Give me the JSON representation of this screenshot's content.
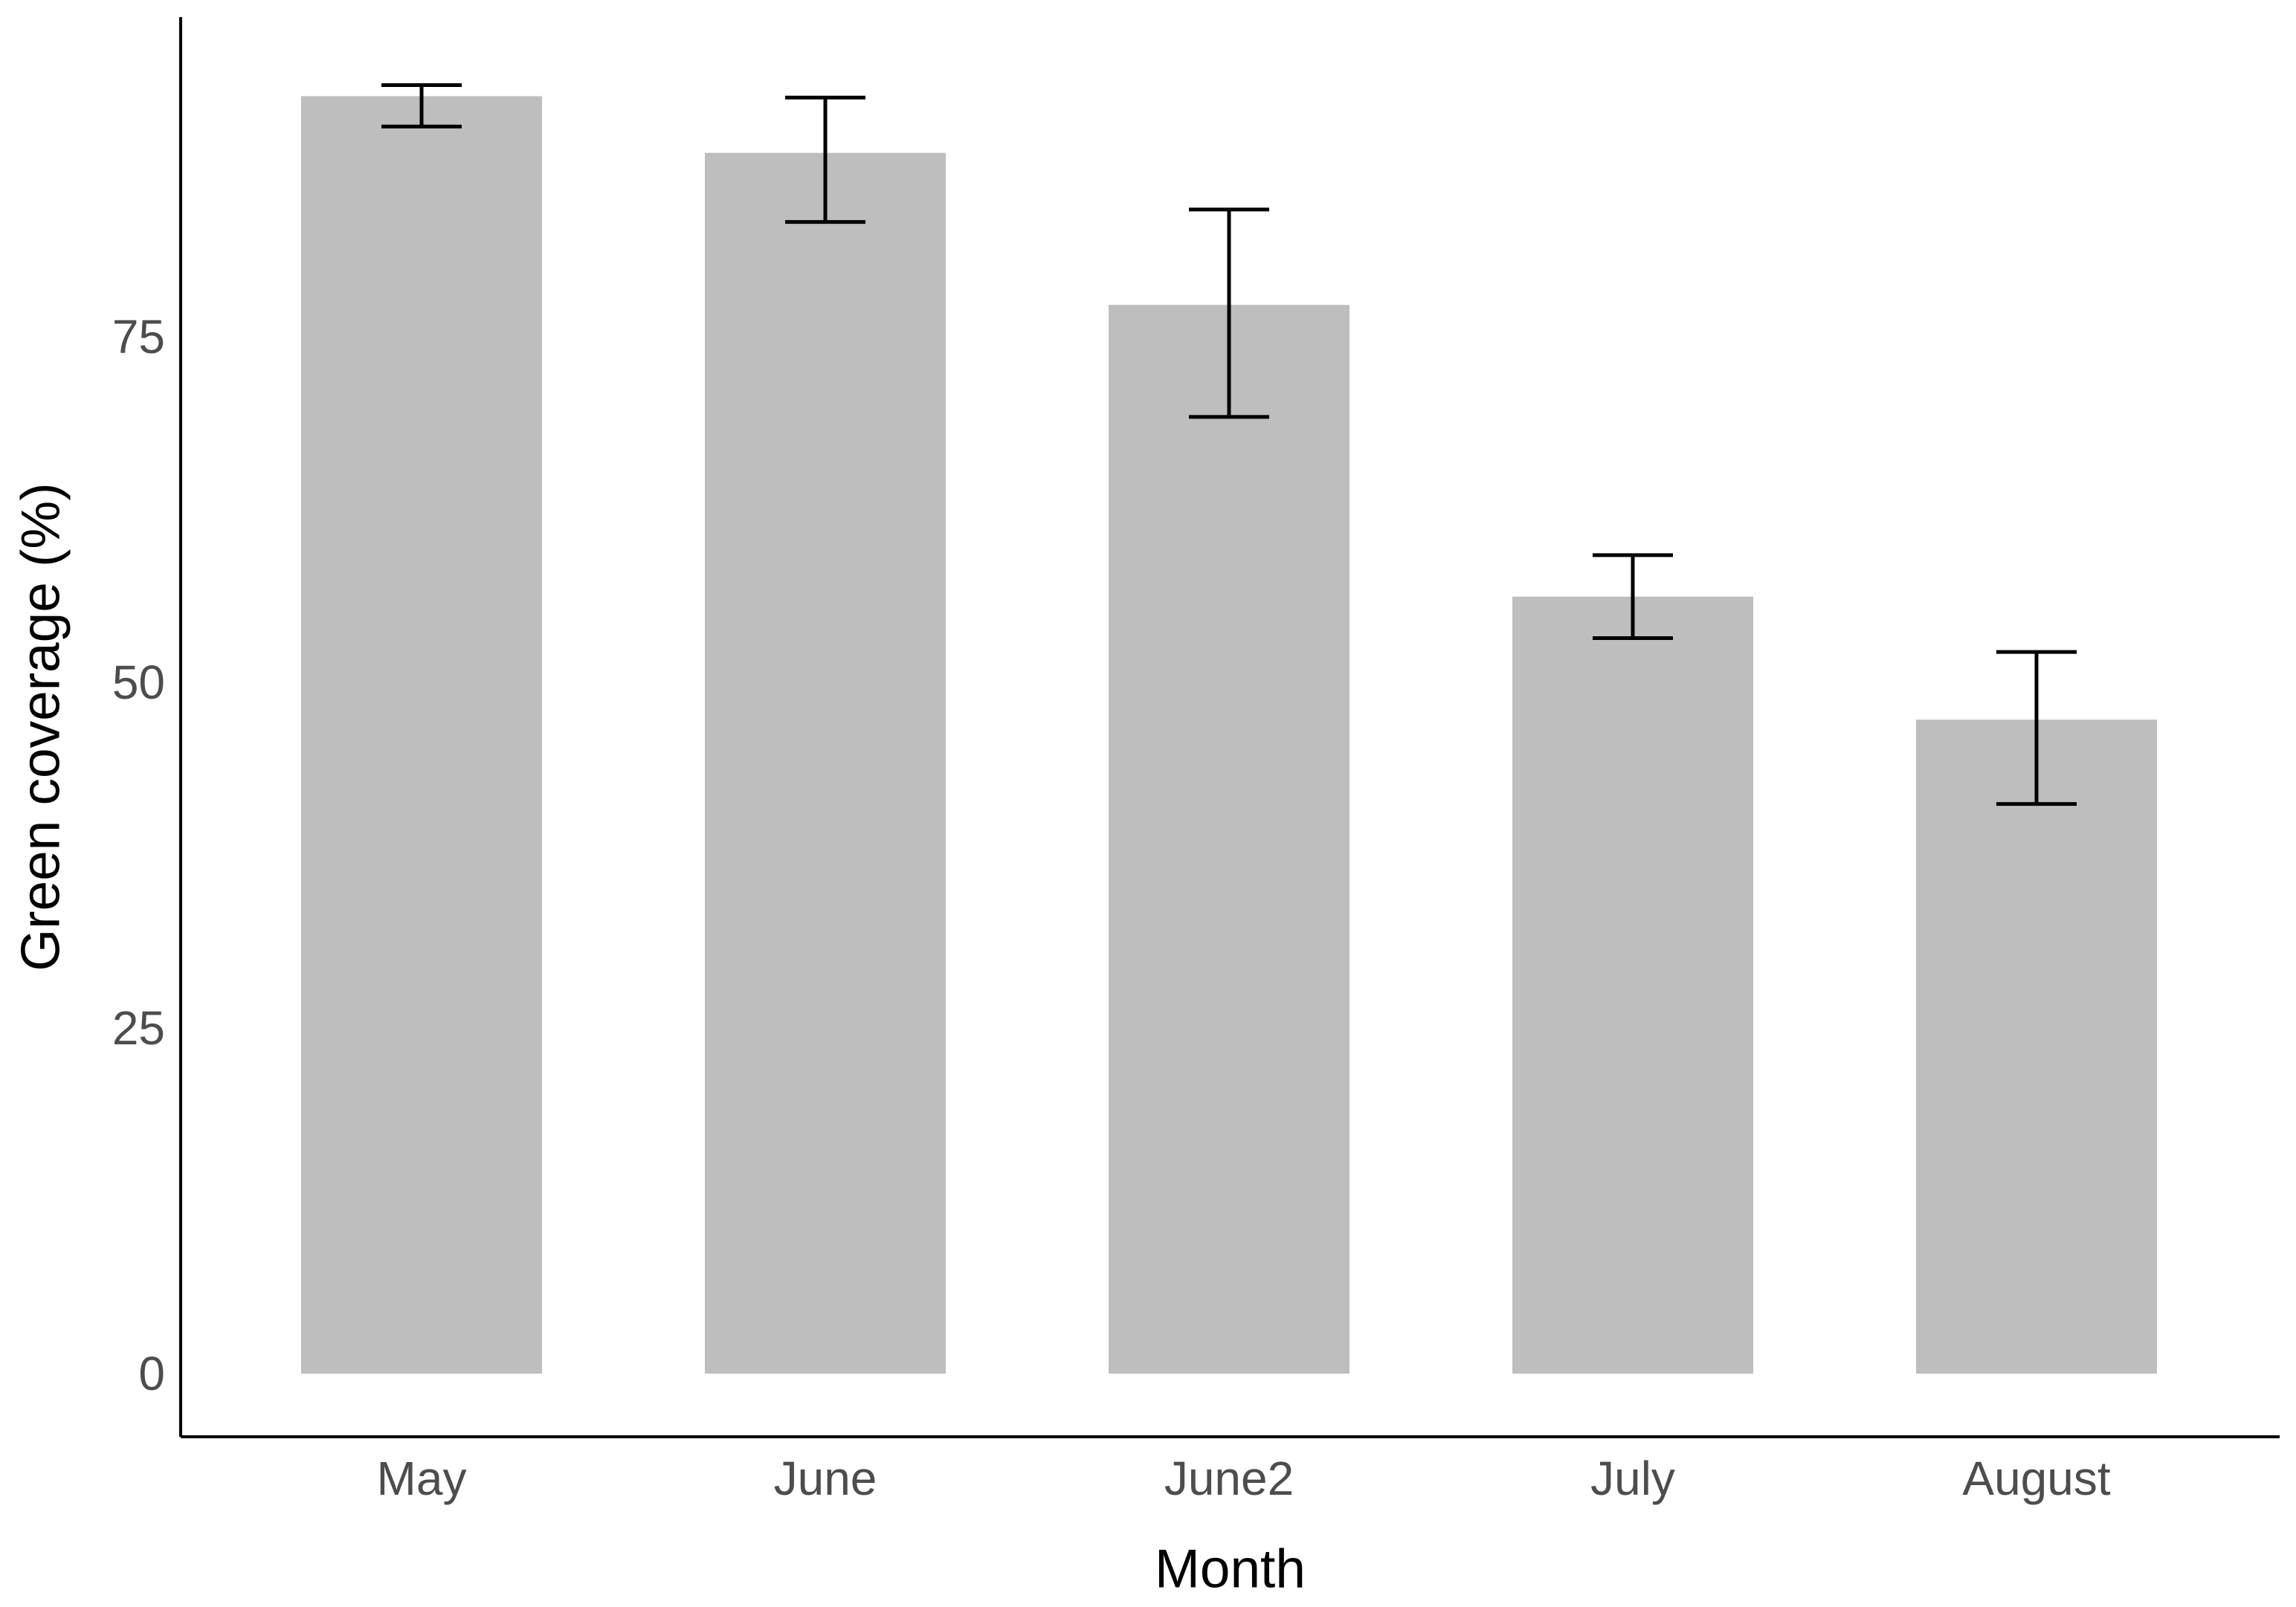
{
  "chart_data": {
    "type": "bar",
    "title": "",
    "categories": [
      "May",
      "June",
      "June2",
      "July",
      "August"
    ],
    "values": [
      92.4,
      88.3,
      77.3,
      56.2,
      47.3
    ],
    "error_low": [
      90.2,
      83.3,
      69.2,
      53.2,
      41.2
    ],
    "error_high": [
      93.2,
      92.3,
      84.2,
      59.2,
      52.2
    ],
    "xlabel": "Month",
    "ylabel": "Green coverage (%)",
    "yticks": [
      0,
      25,
      50,
      75
    ],
    "ylim": [
      0,
      98
    ],
    "grid": false,
    "legend": false,
    "bar_fill": "#bebebe",
    "error_color": "#000000",
    "axis_color": "#000000",
    "tick_label_color": "#4d4d4d",
    "background": "#ffffff"
  }
}
